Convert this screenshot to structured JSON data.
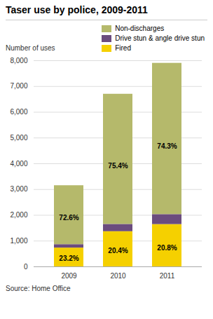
{
  "chart_data": {
    "type": "bar",
    "stacked": true,
    "title": "Taser use by police, 2009-2011",
    "ylabel": "Number of uses",
    "caption": "Source: Home Office",
    "categories": [
      "2009",
      "2010",
      "2011"
    ],
    "series": [
      {
        "name": "Fired",
        "color": "#f5d000",
        "values": [
          730.8,
          1366.8,
          1643.2
        ],
        "labels": [
          "23.2%",
          "20.4%",
          "20.8%"
        ]
      },
      {
        "name": "Drive stun & angle drive stun",
        "color": "#6b4c7e",
        "values": [
          132.3,
          281.4,
          387.1
        ]
      },
      {
        "name": "Non-discharges",
        "color": "#b5b96b",
        "values": [
          2286.9,
          5051.8,
          5869.7
        ],
        "labels": [
          "72.6%",
          "75.4%",
          "74.3%"
        ]
      }
    ],
    "ylim": [
      0,
      8000
    ],
    "yticks": [
      0,
      {
        "value": 1000,
        "label": "1,000"
      },
      {
        "value": 2000,
        "label": "2,000"
      },
      {
        "value": 3000,
        "label": "3,000"
      },
      {
        "value": 4000,
        "label": "4,000"
      },
      {
        "value": 5000,
        "label": "5,000"
      },
      {
        "value": 6000,
        "label": "6,000"
      },
      {
        "value": 7000,
        "label": "7,000"
      },
      {
        "value": 8000,
        "label": "8,000"
      }
    ],
    "grid": true,
    "legend": "top"
  }
}
